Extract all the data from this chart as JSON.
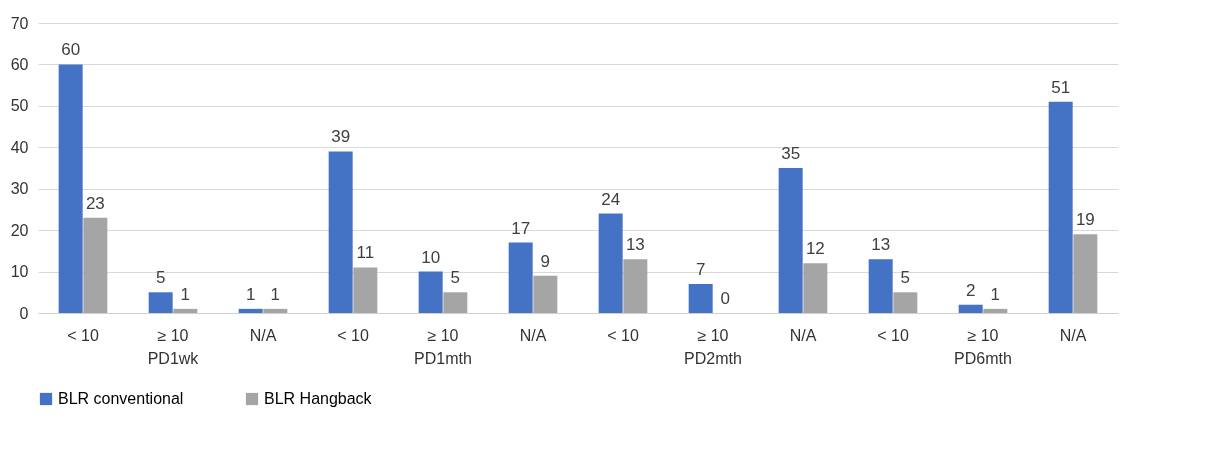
{
  "chart_data": {
    "type": "bar",
    "categories": [
      "< 10",
      "≥ 10",
      "N/A",
      "< 10",
      "≥ 10",
      "N/A",
      "< 10",
      "≥ 10",
      "N/A",
      "< 10",
      "≥ 10",
      "N/A"
    ],
    "annotations": [
      "PD1wk",
      "PD1mth",
      "PD2mth",
      "PD6mth"
    ],
    "series": [
      {
        "name": "BLR conventional",
        "color": "#4472c4",
        "values": [
          60,
          5,
          1,
          39,
          10,
          17,
          24,
          7,
          35,
          13,
          2,
          51
        ]
      },
      {
        "name": "BLR Hangback",
        "color": "#a5a5a5",
        "values": [
          23,
          1,
          1,
          11,
          5,
          9,
          13,
          0,
          12,
          5,
          1,
          19
        ]
      }
    ],
    "ylim": [
      0,
      70
    ],
    "yticks": [
      0,
      10,
      20,
      30,
      40,
      50,
      60,
      70
    ],
    "grid": "y",
    "legend": "bottom",
    "data_labels": true
  }
}
